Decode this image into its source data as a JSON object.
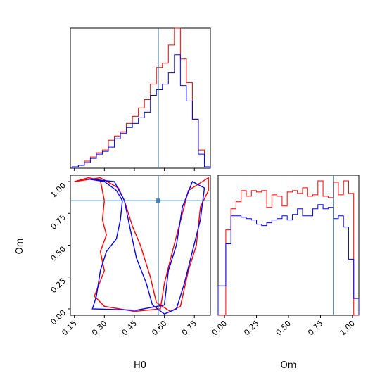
{
  "chart_data": {
    "type": "corner",
    "parameters": [
      "H0",
      "Om"
    ],
    "truth": {
      "H0": 0.57,
      "Om": 0.85
    },
    "colors": {
      "series_a": "#ff0000",
      "series_b": "#0000ff",
      "truth": "#4682b4"
    },
    "panels": {
      "h0_hist": {
        "type": "histogram",
        "xlim": [
          0.13,
          0.83
        ],
        "bin_edges": [
          0.14,
          0.17,
          0.2,
          0.23,
          0.26,
          0.29,
          0.32,
          0.35,
          0.38,
          0.41,
          0.44,
          0.47,
          0.5,
          0.53,
          0.56,
          0.59,
          0.62,
          0.65,
          0.68,
          0.71,
          0.74,
          0.77,
          0.8,
          0.83
        ],
        "series": [
          {
            "color": "red",
            "values": [
              0.01,
              0.02,
              0.05,
              0.08,
              0.11,
              0.13,
              0.2,
              0.23,
              0.26,
              0.32,
              0.37,
              0.43,
              0.49,
              0.6,
              0.72,
              0.75,
              0.88,
              1.0,
              0.78,
              0.61,
              0.35,
              0.13,
              0.01
            ]
          },
          {
            "color": "blue",
            "values": [
              0.01,
              0.02,
              0.04,
              0.07,
              0.1,
              0.12,
              0.15,
              0.21,
              0.25,
              0.29,
              0.32,
              0.36,
              0.4,
              0.52,
              0.56,
              0.6,
              0.68,
              0.81,
              0.59,
              0.48,
              0.35,
              0.1,
              0.01
            ]
          }
        ]
      },
      "om_hist": {
        "type": "histogram",
        "xlim": [
          -0.05,
          1.05
        ],
        "bin_edges": [
          -0.05,
          0.01,
          0.05,
          0.09,
          0.13,
          0.17,
          0.21,
          0.25,
          0.29,
          0.33,
          0.37,
          0.41,
          0.45,
          0.49,
          0.53,
          0.57,
          0.61,
          0.65,
          0.69,
          0.73,
          0.77,
          0.81,
          0.85,
          0.89,
          0.93,
          0.97,
          1.01,
          1.05
        ],
        "series": [
          {
            "color": "red",
            "values": [
              0.0,
              0.61,
              0.76,
              0.81,
              0.89,
              0.85,
              0.89,
              0.88,
              0.89,
              0.77,
              0.86,
              0.85,
              0.78,
              0.88,
              0.89,
              0.87,
              0.91,
              0.85,
              0.86,
              0.96,
              0.85,
              0.84,
              0.95,
              0.86,
              0.96,
              0.87,
              0.0
            ]
          },
          {
            "color": "blue",
            "values": [
              0.21,
              0.51,
              0.71,
              0.71,
              0.7,
              0.69,
              0.68,
              0.65,
              0.64,
              0.66,
              0.68,
              0.69,
              0.71,
              0.68,
              0.72,
              0.76,
              0.71,
              0.71,
              0.76,
              0.79,
              0.76,
              0.77,
              0.69,
              0.71,
              0.63,
              0.4,
              0.12
            ]
          }
        ]
      },
      "h0_om_contour": {
        "type": "contour",
        "xlim": [
          0.13,
          0.83
        ],
        "ylim": [
          -0.05,
          1.05
        ],
        "contours": [
          {
            "color": "red",
            "level": "outer",
            "points": [
              [
                0.15,
                1.0
              ],
              [
                0.22,
                1.03
              ],
              [
                0.28,
                1.01
              ],
              [
                0.3,
                0.85
              ],
              [
                0.29,
                0.7
              ],
              [
                0.31,
                0.58
              ],
              [
                0.28,
                0.45
              ],
              [
                0.3,
                0.3
              ],
              [
                0.25,
                0.1
              ],
              [
                0.3,
                0.02
              ],
              [
                0.45,
                -0.02
              ],
              [
                0.58,
                0.0
              ],
              [
                0.6,
                0.2
              ],
              [
                0.64,
                0.45
              ],
              [
                0.69,
                0.75
              ],
              [
                0.72,
                0.93
              ],
              [
                0.82,
                1.03
              ],
              [
                0.82,
                0.93
              ],
              [
                0.78,
                0.8
              ],
              [
                0.76,
                0.5
              ],
              [
                0.72,
                0.3
              ],
              [
                0.68,
                0.02
              ],
              [
                0.63,
                -0.02
              ],
              [
                0.56,
                0.05
              ],
              [
                0.53,
                0.25
              ],
              [
                0.48,
                0.5
              ],
              [
                0.44,
                0.65
              ],
              [
                0.4,
                0.85
              ],
              [
                0.37,
                0.95
              ],
              [
                0.28,
                1.03
              ],
              [
                0.15,
                1.0
              ]
            ]
          },
          {
            "color": "blue",
            "level": "outer",
            "points": [
              [
                0.22,
                1.02
              ],
              [
                0.3,
                1.0
              ],
              [
                0.36,
                0.93
              ],
              [
                0.39,
                0.85
              ],
              [
                0.38,
                0.7
              ],
              [
                0.36,
                0.55
              ],
              [
                0.31,
                0.45
              ],
              [
                0.28,
                0.3
              ],
              [
                0.26,
                0.1
              ],
              [
                0.24,
                0.0
              ],
              [
                0.46,
                -0.01
              ],
              [
                0.6,
                0.03
              ],
              [
                0.62,
                0.3
              ],
              [
                0.66,
                0.5
              ],
              [
                0.69,
                0.8
              ],
              [
                0.74,
                1.0
              ],
              [
                0.8,
                0.95
              ],
              [
                0.78,
                0.7
              ],
              [
                0.74,
                0.45
              ],
              [
                0.7,
                0.2
              ],
              [
                0.66,
                0.0
              ],
              [
                0.6,
                -0.04
              ],
              [
                0.54,
                0.03
              ],
              [
                0.51,
                0.2
              ],
              [
                0.46,
                0.4
              ],
              [
                0.43,
                0.62
              ],
              [
                0.4,
                0.85
              ],
              [
                0.35,
                1.0
              ],
              [
                0.22,
                1.02
              ]
            ]
          }
        ]
      }
    },
    "axes": {
      "h0": {
        "label": "H0",
        "ticks": [
          "0.15",
          "0.30",
          "0.45",
          "0.60",
          "0.75"
        ]
      },
      "om": {
        "label": "Om",
        "ticks": [
          "0.00",
          "0.25",
          "0.50",
          "0.75",
          "1.00"
        ]
      }
    }
  }
}
